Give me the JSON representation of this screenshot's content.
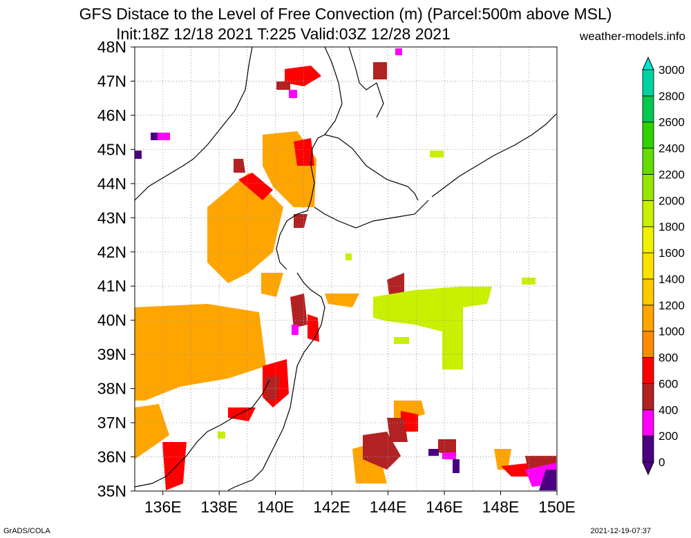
{
  "title_line1": "GFS Distace to the Level of Free Convection (m) (Parcel:500m above MSL)",
  "title_line2": "Init:18Z 12/18 2021 T:225 Valid:03Z 12/28 2021",
  "site": "weather-models.info",
  "footer_left": "GrADS/COLA",
  "footer_right": "2021-12-19-07:37",
  "map": {
    "lon_range": [
      135,
      150
    ],
    "lat_range": [
      35,
      48
    ],
    "lon_ticks": [
      "136E",
      "138E",
      "140E",
      "142E",
      "144E",
      "146E",
      "148E",
      "150E"
    ],
    "lat_ticks": [
      "35N",
      "36N",
      "37N",
      "38N",
      "39N",
      "40N",
      "41N",
      "42N",
      "43N",
      "44N",
      "45N",
      "46N",
      "47N",
      "48N"
    ],
    "grid": "dotted"
  },
  "colorbar": {
    "labels": [
      "0",
      "200",
      "400",
      "600",
      "800",
      "1000",
      "1200",
      "1400",
      "1600",
      "1800",
      "2000",
      "2200",
      "2400",
      "2600",
      "2800",
      "3000"
    ],
    "colors": [
      "#4b0082",
      "#ff00ff",
      "#b22222",
      "#ff0000",
      "#ff8c00",
      "#ffa500",
      "#ffc800",
      "#ffe100",
      "#f0f000",
      "#c8f000",
      "#96e600",
      "#64dc00",
      "#32d200",
      "#00c850",
      "#00d2a0",
      "#00e6d2"
    ]
  },
  "fields": [
    {
      "color": "#ffa500",
      "pts": [
        [
          195,
          445
        ],
        [
          300,
          440
        ],
        [
          375,
          452
        ],
        [
          385,
          530
        ],
        [
          330,
          548
        ],
        [
          260,
          560
        ],
        [
          210,
          580
        ],
        [
          195,
          580
        ]
      ]
    },
    {
      "color": "#ffa500",
      "pts": [
        [
          195,
          590
        ],
        [
          230,
          585
        ],
        [
          245,
          630
        ],
        [
          195,
          665
        ]
      ]
    },
    {
      "color": "#ffa500",
      "pts": [
        [
          300,
          300
        ],
        [
          360,
          250
        ],
        [
          410,
          300
        ],
        [
          395,
          365
        ],
        [
          360,
          395
        ],
        [
          330,
          410
        ],
        [
          300,
          380
        ]
      ]
    },
    {
      "color": "#ffa500",
      "pts": [
        [
          380,
          195
        ],
        [
          430,
          190
        ],
        [
          458,
          230
        ],
        [
          455,
          300
        ],
        [
          425,
          300
        ],
        [
          395,
          270
        ],
        [
          380,
          240
        ]
      ]
    },
    {
      "color": "#ffa500",
      "pts": [
        [
          378,
          395
        ],
        [
          410,
          395
        ],
        [
          400,
          430
        ],
        [
          378,
          425
        ]
      ]
    },
    {
      "color": "#ffa500",
      "pts": [
        [
          470,
          425
        ],
        [
          520,
          425
        ],
        [
          510,
          445
        ],
        [
          475,
          440
        ]
      ]
    },
    {
      "color": "#ffa500",
      "pts": [
        [
          510,
          650
        ],
        [
          545,
          640
        ],
        [
          560,
          700
        ],
        [
          515,
          700
        ]
      ]
    },
    {
      "color": "#ffa500",
      "pts": [
        [
          570,
          580
        ],
        [
          610,
          580
        ],
        [
          615,
          600
        ],
        [
          570,
          610
        ]
      ]
    },
    {
      "color": "#ffa500",
      "pts": [
        [
          715,
          650
        ],
        [
          740,
          650
        ],
        [
          735,
          680
        ],
        [
          720,
          680
        ]
      ]
    },
    {
      "color": "#ffa500",
      "pts": [
        [
          600,
          430
        ],
        [
          640,
          425
        ],
        [
          645,
          450
        ],
        [
          610,
          455
        ]
      ]
    },
    {
      "color": "#ff0000",
      "pts": [
        [
          345,
          260
        ],
        [
          365,
          250
        ],
        [
          395,
          275
        ],
        [
          380,
          290
        ]
      ]
    },
    {
      "color": "#ff0000",
      "pts": [
        [
          412,
          100
        ],
        [
          450,
          95
        ],
        [
          465,
          110
        ],
        [
          440,
          125
        ],
        [
          412,
          120
        ]
      ]
    },
    {
      "color": "#ff0000",
      "pts": [
        [
          425,
          205
        ],
        [
          450,
          200
        ],
        [
          455,
          240
        ],
        [
          430,
          240
        ]
      ]
    },
    {
      "color": "#ff0000",
      "pts": [
        [
          380,
          530
        ],
        [
          415,
          520
        ],
        [
          418,
          570
        ],
        [
          395,
          590
        ],
        [
          380,
          575
        ]
      ]
    },
    {
      "color": "#ff0000",
      "pts": [
        [
          235,
          640
        ],
        [
          270,
          640
        ],
        [
          265,
          700
        ],
        [
          240,
          710
        ]
      ]
    },
    {
      "color": "#ff0000",
      "pts": [
        [
          725,
          675
        ],
        [
          770,
          670
        ],
        [
          800,
          665
        ],
        [
          805,
          690
        ],
        [
          740,
          690
        ]
      ]
    },
    {
      "color": "#ff0000",
      "pts": [
        [
          580,
          595
        ],
        [
          605,
          600
        ],
        [
          605,
          625
        ],
        [
          580,
          625
        ]
      ]
    },
    {
      "color": "#ff0000",
      "pts": [
        [
          330,
          590
        ],
        [
          370,
          590
        ],
        [
          360,
          610
        ],
        [
          330,
          605
        ]
      ]
    },
    {
      "color": "#ff0000",
      "pts": [
        [
          445,
          455
        ],
        [
          460,
          460
        ],
        [
          462,
          495
        ],
        [
          445,
          490
        ]
      ]
    },
    {
      "color": "#b22222",
      "pts": [
        [
          540,
          90
        ],
        [
          560,
          90
        ],
        [
          560,
          115
        ],
        [
          540,
          115
        ]
      ]
    },
    {
      "color": "#b22222",
      "pts": [
        [
          400,
          118
        ],
        [
          420,
          118
        ],
        [
          420,
          130
        ],
        [
          400,
          130
        ]
      ]
    },
    {
      "color": "#b22222",
      "pts": [
        [
          338,
          230
        ],
        [
          352,
          230
        ],
        [
          355,
          250
        ],
        [
          338,
          250
        ]
      ]
    },
    {
      "color": "#b22222",
      "pts": [
        [
          420,
          430
        ],
        [
          440,
          425
        ],
        [
          445,
          470
        ],
        [
          425,
          475
        ]
      ]
    },
    {
      "color": "#b22222",
      "pts": [
        [
          560,
          405
        ],
        [
          585,
          395
        ],
        [
          585,
          435
        ],
        [
          565,
          440
        ]
      ]
    },
    {
      "color": "#b22222",
      "pts": [
        [
          525,
          630
        ],
        [
          560,
          625
        ],
        [
          580,
          660
        ],
        [
          560,
          680
        ],
        [
          525,
          665
        ]
      ]
    },
    {
      "color": "#b22222",
      "pts": [
        [
          560,
          605
        ],
        [
          585,
          605
        ],
        [
          590,
          640
        ],
        [
          565,
          640
        ]
      ]
    },
    {
      "color": "#b22222",
      "pts": [
        [
          634,
          636
        ],
        [
          660,
          636
        ],
        [
          660,
          660
        ],
        [
          634,
          655
        ]
      ]
    },
    {
      "color": "#b22222",
      "pts": [
        [
          760,
          660
        ],
        [
          805,
          660
        ],
        [
          805,
          680
        ],
        [
          765,
          685
        ]
      ]
    },
    {
      "color": "#b22222",
      "pts": [
        [
          384,
          545
        ],
        [
          405,
          545
        ],
        [
          400,
          580
        ],
        [
          384,
          580
        ]
      ]
    },
    {
      "color": "#b22222",
      "pts": [
        [
          425,
          310
        ],
        [
          445,
          310
        ],
        [
          440,
          330
        ],
        [
          425,
          330
        ]
      ]
    },
    {
      "color": "#ff00ff",
      "pts": [
        [
          760,
          680
        ],
        [
          805,
          670
        ],
        [
          805,
          700
        ],
        [
          770,
          705
        ]
      ]
    },
    {
      "color": "#ff00ff",
      "pts": [
        [
          418,
          130
        ],
        [
          430,
          130
        ],
        [
          430,
          142
        ],
        [
          418,
          142
        ]
      ]
    },
    {
      "color": "#ff00ff",
      "pts": [
        [
          422,
          470
        ],
        [
          432,
          470
        ],
        [
          432,
          485
        ],
        [
          422,
          485
        ]
      ]
    },
    {
      "color": "#ff00ff",
      "pts": [
        [
          640,
          655
        ],
        [
          660,
          655
        ],
        [
          660,
          665
        ],
        [
          640,
          665
        ]
      ]
    },
    {
      "color": "#ff00ff",
      "pts": [
        [
          572,
          70
        ],
        [
          582,
          70
        ],
        [
          582,
          80
        ],
        [
          572,
          80
        ]
      ]
    },
    {
      "color": "#ff00ff",
      "pts": [
        [
          228,
          192
        ],
        [
          246,
          192
        ],
        [
          246,
          203
        ],
        [
          228,
          203
        ]
      ]
    },
    {
      "color": "#4b0082",
      "pts": [
        [
          790,
          680
        ],
        [
          805,
          680
        ],
        [
          805,
          710
        ],
        [
          780,
          710
        ]
      ]
    },
    {
      "color": "#4b0082",
      "pts": [
        [
          195,
          218
        ],
        [
          205,
          218
        ],
        [
          205,
          230
        ],
        [
          195,
          230
        ]
      ]
    },
    {
      "color": "#4b0082",
      "pts": [
        [
          218,
          192
        ],
        [
          228,
          192
        ],
        [
          228,
          203
        ],
        [
          218,
          203
        ]
      ]
    },
    {
      "color": "#4b0082",
      "pts": [
        [
          620,
          650
        ],
        [
          635,
          650
        ],
        [
          635,
          660
        ],
        [
          620,
          660
        ]
      ]
    },
    {
      "color": "#4b0082",
      "pts": [
        [
          655,
          665
        ],
        [
          665,
          665
        ],
        [
          665,
          685
        ],
        [
          655,
          685
        ]
      ]
    },
    {
      "color": "#c8f000",
      "pts": [
        [
          540,
          430
        ],
        [
          600,
          420
        ],
        [
          665,
          415
        ],
        [
          712,
          415
        ],
        [
          705,
          440
        ],
        [
          670,
          445
        ],
        [
          670,
          535
        ],
        [
          640,
          535
        ],
        [
          640,
          480
        ],
        [
          600,
          470
        ],
        [
          560,
          465
        ],
        [
          540,
          460
        ]
      ]
    },
    {
      "color": "#c8f000",
      "pts": [
        [
          570,
          488
        ],
        [
          592,
          488
        ],
        [
          592,
          498
        ],
        [
          570,
          498
        ]
      ]
    },
    {
      "color": "#c8f000",
      "pts": [
        [
          622,
          218
        ],
        [
          642,
          218
        ],
        [
          642,
          228
        ],
        [
          622,
          228
        ]
      ]
    },
    {
      "color": "#c8f000",
      "pts": [
        [
          755,
          402
        ],
        [
          775,
          402
        ],
        [
          775,
          412
        ],
        [
          755,
          412
        ]
      ]
    },
    {
      "color": "#c8f000",
      "pts": [
        [
          500,
          367
        ],
        [
          509,
          367
        ],
        [
          509,
          377
        ],
        [
          500,
          377
        ]
      ]
    },
    {
      "color": "#c8f000",
      "pts": [
        [
          315,
          625
        ],
        [
          326,
          625
        ],
        [
          326,
          635
        ],
        [
          315,
          635
        ]
      ]
    }
  ],
  "coastlines": [
    [
      [
        195,
        290
      ],
      [
        215,
        270
      ],
      [
        240,
        255
      ],
      [
        265,
        240
      ],
      [
        280,
        230
      ],
      [
        300,
        210
      ],
      [
        320,
        185
      ],
      [
        340,
        160
      ],
      [
        355,
        130
      ],
      [
        360,
        95
      ],
      [
        365,
        68
      ]
    ],
    [
      [
        470,
        68
      ],
      [
        480,
        90
      ],
      [
        490,
        120
      ],
      [
        495,
        150
      ],
      [
        485,
        175
      ],
      [
        470,
        195
      ],
      [
        460,
        200
      ],
      [
        452,
        215
      ],
      [
        450,
        240
      ],
      [
        455,
        265
      ],
      [
        450,
        290
      ],
      [
        445,
        305
      ],
      [
        430,
        310
      ],
      [
        415,
        320
      ],
      [
        405,
        340
      ],
      [
        400,
        360
      ],
      [
        405,
        380
      ],
      [
        415,
        390
      ]
    ],
    [
      [
        430,
        395
      ],
      [
        440,
        410
      ],
      [
        450,
        420
      ],
      [
        465,
        430
      ],
      [
        470,
        445
      ],
      [
        465,
        470
      ],
      [
        455,
        490
      ],
      [
        440,
        510
      ],
      [
        430,
        530
      ],
      [
        425,
        560
      ],
      [
        420,
        590
      ],
      [
        410,
        620
      ],
      [
        395,
        650
      ],
      [
        380,
        680
      ],
      [
        365,
        695
      ],
      [
        340,
        705
      ],
      [
        330,
        710
      ]
    ],
    [
      [
        455,
        300
      ],
      [
        470,
        310
      ],
      [
        490,
        320
      ],
      [
        515,
        330
      ],
      [
        540,
        320
      ],
      [
        570,
        315
      ],
      [
        600,
        310
      ],
      [
        610,
        300
      ],
      [
        620,
        290
      ]
    ],
    [
      [
        195,
        705
      ],
      [
        220,
        700
      ],
      [
        240,
        690
      ],
      [
        255,
        675
      ],
      [
        270,
        660
      ],
      [
        285,
        640
      ],
      [
        300,
        625
      ],
      [
        320,
        615
      ],
      [
        345,
        600
      ],
      [
        365,
        590
      ],
      [
        380,
        570
      ],
      [
        390,
        550
      ]
    ],
    [
      [
        505,
        68
      ],
      [
        515,
        100
      ],
      [
        520,
        120
      ],
      [
        530,
        130
      ],
      [
        545,
        120
      ],
      [
        555,
        150
      ],
      [
        545,
        170
      ]
    ],
    [
      [
        805,
        165
      ],
      [
        790,
        180
      ],
      [
        770,
        195
      ],
      [
        745,
        210
      ],
      [
        715,
        225
      ],
      [
        690,
        240
      ],
      [
        665,
        255
      ],
      [
        645,
        270
      ],
      [
        625,
        285
      ]
    ],
    [
      [
        470,
        195
      ],
      [
        490,
        200
      ],
      [
        510,
        215
      ],
      [
        530,
        240
      ],
      [
        560,
        260
      ],
      [
        590,
        270
      ],
      [
        600,
        280
      ],
      [
        605,
        290
      ]
    ]
  ]
}
